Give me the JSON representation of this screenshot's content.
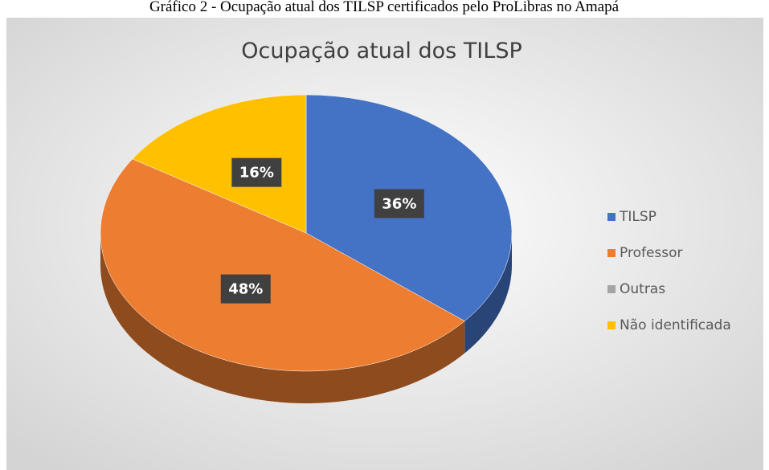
{
  "caption": "Gráfico 2 - Ocupação atual dos TILSP certificados pelo ProLibras no Amapá",
  "chart_data": {
    "type": "pie",
    "title": "Ocupação atual dos TILSP",
    "categories": [
      "TILSP",
      "Professor",
      "Outras",
      "Não identificada"
    ],
    "values": [
      36,
      48,
      0,
      16
    ],
    "value_labels": [
      "36%",
      "48%",
      null,
      "16%"
    ],
    "colors": [
      "#4472c4",
      "#ed7d31",
      "#a5a5a5",
      "#ffc000"
    ],
    "legend": "right"
  }
}
